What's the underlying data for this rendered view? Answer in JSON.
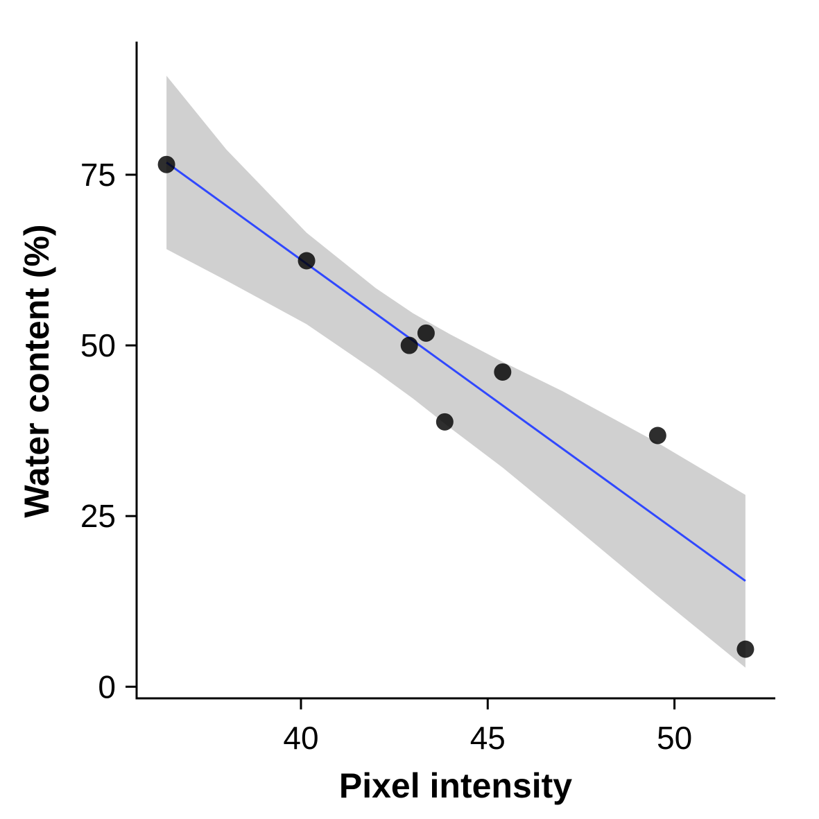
{
  "chart_data": {
    "type": "scatter",
    "xlabel": "Pixel intensity",
    "ylabel": "Water content (%)",
    "xlim": [
      35.6,
      52.7
    ],
    "ylim": [
      -1.7,
      94.5
    ],
    "x_ticks": [
      40,
      45,
      50
    ],
    "y_ticks": [
      0,
      25,
      50,
      75
    ],
    "x_tick_labels": [
      "40",
      "45",
      "50"
    ],
    "y_tick_labels": [
      "0",
      "25",
      "50",
      "75"
    ],
    "grid": false,
    "legend": "none",
    "points": [
      {
        "x": 36.4,
        "y": 76.5
      },
      {
        "x": 40.15,
        "y": 62.4
      },
      {
        "x": 42.9,
        "y": 50.0
      },
      {
        "x": 43.35,
        "y": 51.8
      },
      {
        "x": 43.85,
        "y": 38.8
      },
      {
        "x": 45.4,
        "y": 46.1
      },
      {
        "x": 49.55,
        "y": 36.8
      },
      {
        "x": 51.9,
        "y": 5.5
      }
    ],
    "fit": {
      "method": "linear",
      "x_start": 36.4,
      "x_end": 51.9,
      "y_start": 76.8,
      "y_end": 15.5
    },
    "confidence_band": {
      "x": [
        36.4,
        38.0,
        40.15,
        42.0,
        43.0,
        44.0,
        45.4,
        47.0,
        49.5,
        51.9
      ],
      "upper": [
        89.5,
        78.7,
        66.5,
        58.4,
        54.7,
        51.6,
        47.6,
        43.3,
        35.9,
        28.1
      ],
      "lower": [
        64.1,
        59.5,
        53.1,
        46.2,
        42.2,
        37.9,
        32.1,
        24.9,
        13.5,
        2.8
      ]
    },
    "colors": {
      "points": "#000000",
      "fit_line": "#3048ff",
      "band": "#d0d0d0",
      "axis": "#000000"
    }
  }
}
